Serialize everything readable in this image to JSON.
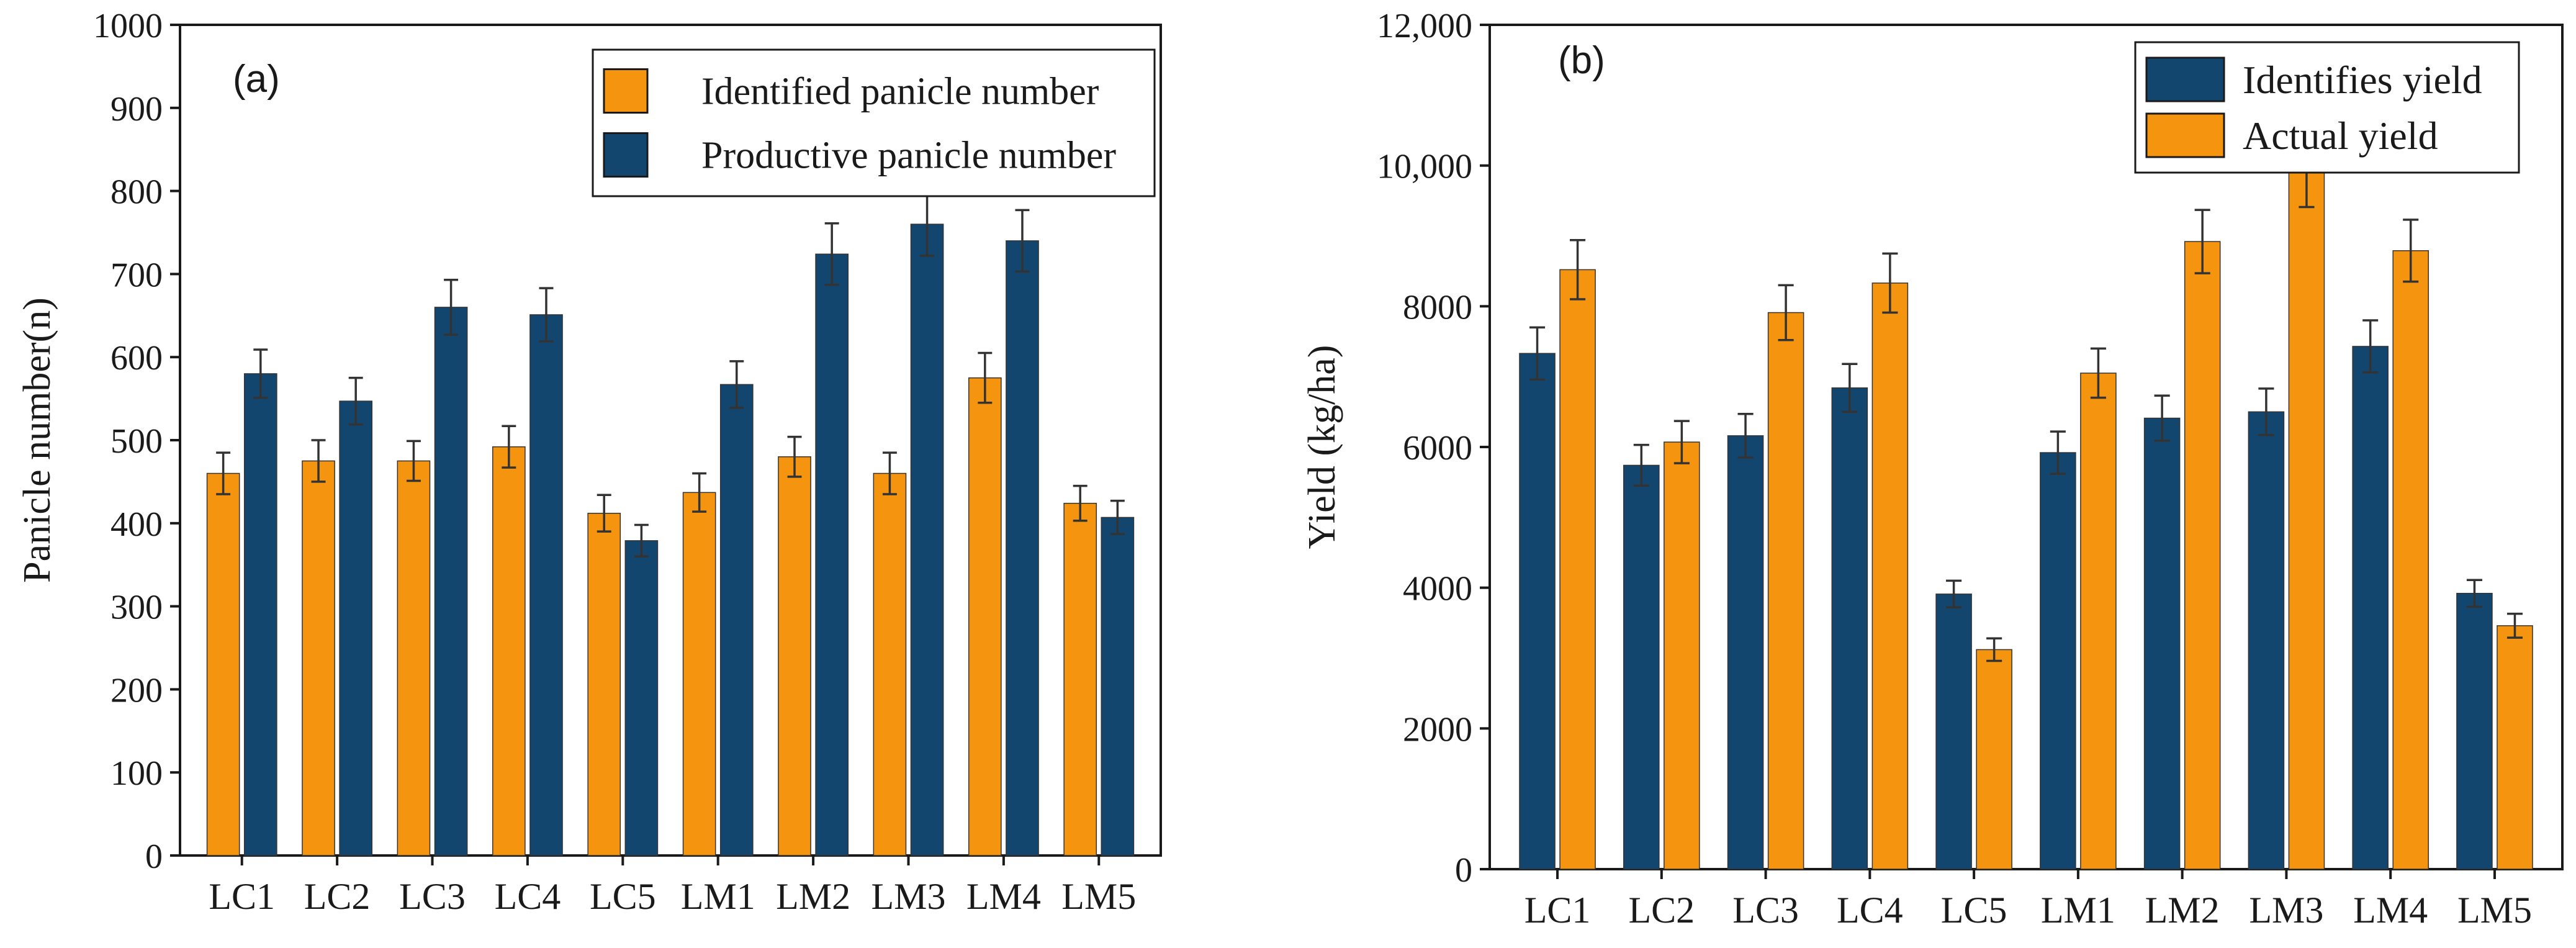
{
  "chart_data": [
    {
      "type": "bar",
      "panel_label": "(a)",
      "title": "",
      "xlabel": "",
      "ylabel": "Panicle number(n)",
      "ylim": [
        0,
        1000
      ],
      "yticks": [
        0,
        100,
        200,
        300,
        400,
        500,
        600,
        700,
        800,
        900,
        1000
      ],
      "ytick_labels": [
        "0",
        "100",
        "200",
        "300",
        "400",
        "500",
        "600",
        "700",
        "800",
        "900",
        "1000"
      ],
      "categories": [
        "LC1",
        "LC2",
        "LC3",
        "LC4",
        "LC5",
        "LM1",
        "LM2",
        "LM3",
        "LM4",
        "LM5"
      ],
      "legend_position": "top-right",
      "series": [
        {
          "name": "Identified panicle number",
          "color": "#f5940f",
          "values": [
            460,
            475,
            475,
            492,
            412,
            437,
            480,
            460,
            575,
            424
          ],
          "errors": [
            25,
            25,
            24,
            25,
            22,
            23,
            24,
            25,
            30,
            21
          ]
        },
        {
          "name": "Productive panicle number",
          "color": "#13466e",
          "values": [
            580,
            547,
            660,
            651,
            379,
            567,
            724,
            760,
            740,
            407
          ],
          "errors": [
            29,
            28,
            33,
            32,
            19,
            28,
            37,
            38,
            37,
            20
          ]
        }
      ]
    },
    {
      "type": "bar",
      "panel_label": "(b)",
      "title": "",
      "xlabel": "",
      "ylabel": "Yield (kg/ha)",
      "ylim": [
        0,
        12000
      ],
      "yticks": [
        0,
        2000,
        4000,
        6000,
        8000,
        10000,
        12000
      ],
      "ytick_labels": [
        "0",
        "2000",
        "4000",
        "6000",
        "8000",
        "10,000",
        "12,000"
      ],
      "categories": [
        "LC1",
        "LC2",
        "LC3",
        "LC4",
        "LC5",
        "LM1",
        "LM2",
        "LM3",
        "LM4",
        "LM5"
      ],
      "legend_position": "top-right",
      "series": [
        {
          "name": "Identifies yield",
          "color": "#13466e",
          "values": [
            7330,
            5740,
            6160,
            6840,
            3910,
            5920,
            6410,
            6500,
            7430,
            3920
          ],
          "errors": [
            370,
            290,
            310,
            340,
            190,
            300,
            320,
            330,
            370,
            190
          ]
        },
        {
          "name": "Actual yield",
          "color": "#f5940f",
          "values": [
            8520,
            6070,
            7910,
            8330,
            3120,
            7050,
            8920,
            9910,
            8790,
            3460
          ],
          "errors": [
            420,
            300,
            390,
            420,
            160,
            350,
            450,
            500,
            440,
            170
          ]
        }
      ]
    }
  ]
}
